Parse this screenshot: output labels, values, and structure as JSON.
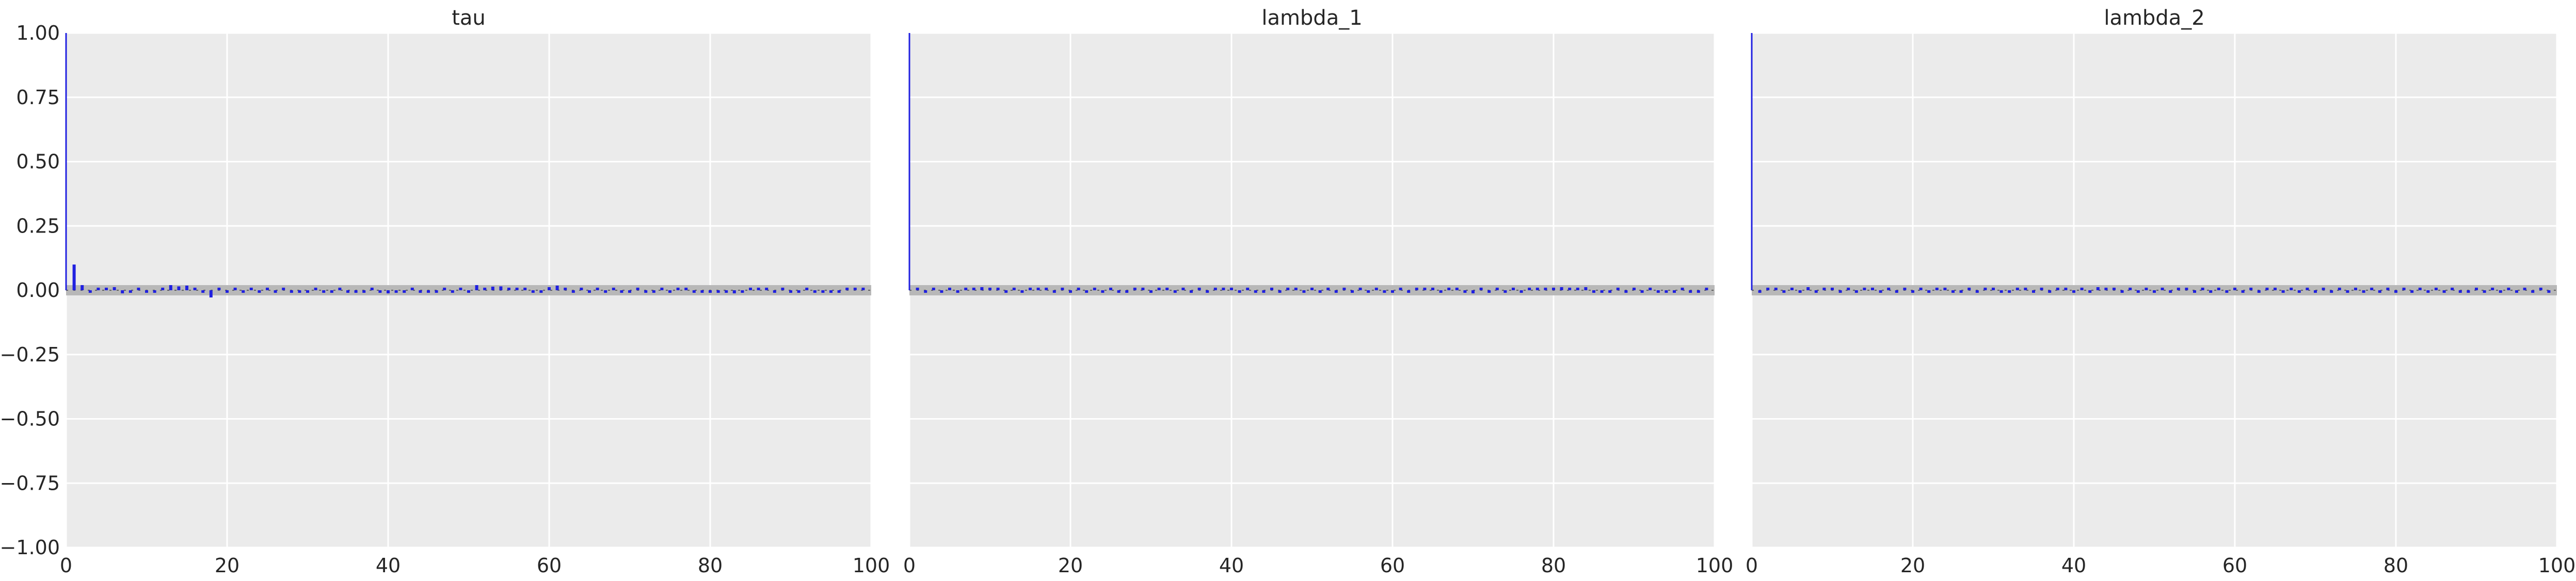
{
  "chart_data": [
    {
      "type": "bar",
      "title": "tau",
      "xlabel": "",
      "ylabel": "",
      "xlim": [
        0,
        100
      ],
      "ylim": [
        -1.0,
        1.0
      ],
      "xticks": [
        0,
        20,
        40,
        60,
        80,
        100
      ],
      "yticks": [
        -1.0,
        -0.75,
        -0.5,
        -0.25,
        0.0,
        0.25,
        0.5,
        0.75,
        1.0
      ],
      "ytick_labels": [
        "−1.00",
        "−0.75",
        "−0.50",
        "−0.25",
        "0.00",
        "0.25",
        "0.50",
        "0.75",
        "1.00"
      ],
      "show_y_ticklabels": true,
      "grid": true,
      "confidence_band": 0.02,
      "lags": [
        0,
        1,
        2,
        3,
        4,
        5,
        6,
        7,
        8,
        9,
        10,
        11,
        12,
        13,
        14,
        15,
        16,
        17,
        18,
        19,
        20,
        21,
        22,
        23,
        24,
        25,
        26,
        27,
        28,
        29,
        30,
        31,
        32,
        33,
        34,
        35,
        36,
        37,
        38,
        39,
        40,
        41,
        42,
        43,
        44,
        45,
        46,
        47,
        48,
        49,
        50,
        51,
        52,
        53,
        54,
        55,
        56,
        57,
        58,
        59,
        60,
        61,
        62,
        63,
        64,
        65,
        66,
        67,
        68,
        69,
        70,
        71,
        72,
        73,
        74,
        75,
        76,
        77,
        78,
        79,
        80,
        81,
        82,
        83,
        84,
        85,
        86,
        87,
        88,
        89,
        90,
        91,
        92,
        93,
        94,
        95,
        96,
        97,
        98,
        99
      ],
      "values": [
        1.0,
        0.1,
        0.02,
        -0.005,
        0.005,
        0.002,
        0.012,
        -0.012,
        -0.005,
        0.006,
        -0.01,
        -0.004,
        0.003,
        0.02,
        0.015,
        0.018,
        0.003,
        -0.01,
        -0.028,
        0.004,
        -0.003,
        0.003,
        -0.005,
        0.002,
        -0.004,
        0.006,
        -0.003,
        0.004,
        -0.002,
        -0.006,
        -0.004,
        0.003,
        -0.008,
        -0.004,
        0.004,
        -0.003,
        -0.002,
        -0.006,
        0.005,
        -0.005,
        -0.012,
        -0.004,
        -0.01,
        0.003,
        -0.004,
        -0.008,
        -0.004,
        0.002,
        -0.003,
        0.004,
        -0.003,
        0.02,
        0.008,
        0.014,
        0.015,
        0.005,
        0.002,
        0.004,
        -0.002,
        -0.004,
        0.012,
        0.018,
        0.004,
        -0.003,
        0.002,
        -0.004,
        0.004,
        -0.004,
        0.003,
        -0.006,
        -0.002,
        0.003,
        -0.004,
        -0.002,
        0.003,
        -0.003,
        0.004,
        0.002,
        -0.004,
        -0.003,
        -0.004,
        -0.01,
        -0.003,
        -0.012,
        -0.002,
        0.002,
        0.006,
        0.004,
        -0.004,
        0.002,
        -0.003,
        -0.006,
        0.003,
        -0.005,
        -0.008,
        -0.01,
        -0.008,
        0.002,
        0.008,
        0.01
      ]
    },
    {
      "type": "bar",
      "title": "lambda_1",
      "xlabel": "",
      "ylabel": "",
      "xlim": [
        0,
        100
      ],
      "ylim": [
        -1.0,
        1.0
      ],
      "xticks": [
        0,
        20,
        40,
        60,
        80,
        100
      ],
      "yticks": [
        -1.0,
        -0.75,
        -0.5,
        -0.25,
        0.0,
        0.25,
        0.5,
        0.75,
        1.0
      ],
      "ytick_labels": [],
      "show_y_ticklabels": false,
      "grid": true,
      "confidence_band": 0.02,
      "lags": [
        0,
        1,
        2,
        3,
        4,
        5,
        6,
        7,
        8,
        9,
        10,
        11,
        12,
        13,
        14,
        15,
        16,
        17,
        18,
        19,
        20,
        21,
        22,
        23,
        24,
        25,
        26,
        27,
        28,
        29,
        30,
        31,
        32,
        33,
        34,
        35,
        36,
        37,
        38,
        39,
        40,
        41,
        42,
        43,
        44,
        45,
        46,
        47,
        48,
        49,
        50,
        51,
        52,
        53,
        54,
        55,
        56,
        57,
        58,
        59,
        60,
        61,
        62,
        63,
        64,
        65,
        66,
        67,
        68,
        69,
        70,
        71,
        72,
        73,
        74,
        75,
        76,
        77,
        78,
        79,
        80,
        81,
        82,
        83,
        84,
        85,
        86,
        87,
        88,
        89,
        90,
        91,
        92,
        93,
        94,
        95,
        96,
        97,
        98,
        99
      ],
      "values": [
        1.0,
        0.005,
        -0.004,
        0.003,
        -0.003,
        0.004,
        -0.002,
        0.003,
        0.004,
        0.012,
        0.008,
        0.003,
        -0.004,
        0.006,
        -0.005,
        0.01,
        0.004,
        0.003,
        -0.003,
        0.002,
        -0.004,
        0.005,
        -0.006,
        0.003,
        -0.004,
        0.004,
        -0.006,
        -0.003,
        0.003,
        0.006,
        -0.003,
        0.004,
        0.002,
        -0.004,
        0.003,
        -0.003,
        0.002,
        -0.005,
        0.004,
        0.006,
        0.004,
        -0.003,
        0.003,
        -0.004,
        -0.002,
        0.004,
        -0.004,
        0.003,
        0.006,
        -0.008,
        0.01,
        -0.002,
        0.004,
        -0.003,
        0.003,
        -0.006,
        0.004,
        -0.002,
        0.003,
        -0.004,
        -0.003,
        0.008,
        -0.002,
        0.006,
        0.005,
        0.004,
        -0.003,
        0.004,
        0.003,
        -0.006,
        -0.012,
        0.003,
        -0.004,
        0.002,
        -0.003,
        0.004,
        -0.004,
        0.003,
        0.004,
        0.01,
        0.008,
        0.012,
        0.008,
        0.01,
        0.012,
        -0.006,
        -0.008,
        -0.004,
        0.004,
        -0.006,
        0.002,
        -0.005,
        0.003,
        -0.004,
        -0.006,
        -0.002,
        0.01,
        -0.004,
        -0.008,
        0.004
      ]
    },
    {
      "type": "bar",
      "title": "lambda_2",
      "xlabel": "",
      "ylabel": "",
      "xlim": [
        0,
        100
      ],
      "ylim": [
        -1.0,
        1.0
      ],
      "xticks": [
        0,
        20,
        40,
        60,
        80,
        100
      ],
      "yticks": [
        -1.0,
        -0.75,
        -0.5,
        -0.25,
        0.0,
        0.25,
        0.5,
        0.75,
        1.0
      ],
      "ytick_labels": [],
      "show_y_ticklabels": false,
      "grid": true,
      "confidence_band": 0.02,
      "lags": [
        0,
        1,
        2,
        3,
        4,
        5,
        6,
        7,
        8,
        9,
        10,
        11,
        12,
        13,
        14,
        15,
        16,
        17,
        18,
        19,
        20,
        21,
        22,
        23,
        24,
        25,
        26,
        27,
        28,
        29,
        30,
        31,
        32,
        33,
        34,
        35,
        36,
        37,
        38,
        39,
        40,
        41,
        42,
        43,
        44,
        45,
        46,
        47,
        48,
        49,
        50,
        51,
        52,
        53,
        54,
        55,
        56,
        57,
        58,
        59,
        60,
        61,
        62,
        63,
        64,
        65,
        66,
        67,
        68,
        69,
        70,
        71,
        72,
        73,
        74,
        75,
        76,
        77,
        78,
        79,
        80,
        81,
        82,
        83,
        84,
        85,
        86,
        87,
        88,
        89,
        90,
        91,
        92,
        93,
        94,
        95,
        96,
        97,
        98,
        99
      ],
      "values": [
        1.0,
        -0.004,
        0.003,
        0.004,
        -0.003,
        0.002,
        -0.004,
        0.012,
        -0.004,
        0.003,
        0.004,
        -0.006,
        0.003,
        -0.002,
        0.01,
        0.004,
        -0.008,
        0.003,
        -0.004,
        0.002,
        -0.003,
        0.004,
        -0.006,
        0.002,
        0.004,
        -0.003,
        -0.008,
        0.003,
        -0.004,
        0.003,
        0.002,
        -0.003,
        -0.01,
        0.004,
        0.008,
        -0.003,
        0.003,
        -0.004,
        0.002,
        0.003,
        -0.004,
        0.01,
        -0.003,
        0.012,
        0.004,
        0.003,
        -0.004,
        0.002,
        -0.003,
        0.004,
        -0.002,
        0.003,
        -0.004,
        0.004,
        0.002,
        -0.003,
        0.004,
        -0.002,
        0.003,
        -0.004,
        0.004,
        -0.003,
        0.003,
        -0.004,
        0.002,
        0.003,
        -0.004,
        0.01,
        -0.002,
        0.003,
        -0.004,
        0.002,
        -0.006,
        0.003,
        -0.004,
        0.002,
        -0.003,
        0.004,
        -0.002,
        0.008,
        -0.003,
        0.004,
        -0.006,
        0.003,
        -0.002,
        0.004,
        -0.003,
        0.002,
        -0.006,
        -0.01,
        0.003,
        -0.004,
        0.002,
        -0.003,
        0.004,
        -0.006,
        0.002,
        -0.004,
        0.003,
        -0.008
      ]
    }
  ],
  "colors": {
    "axes_background": "#ebebeb",
    "grid": "#ffffff",
    "stem": "#2020e0",
    "band": "#b8b8b8",
    "zero_line": "#606060",
    "text": "#262626"
  }
}
